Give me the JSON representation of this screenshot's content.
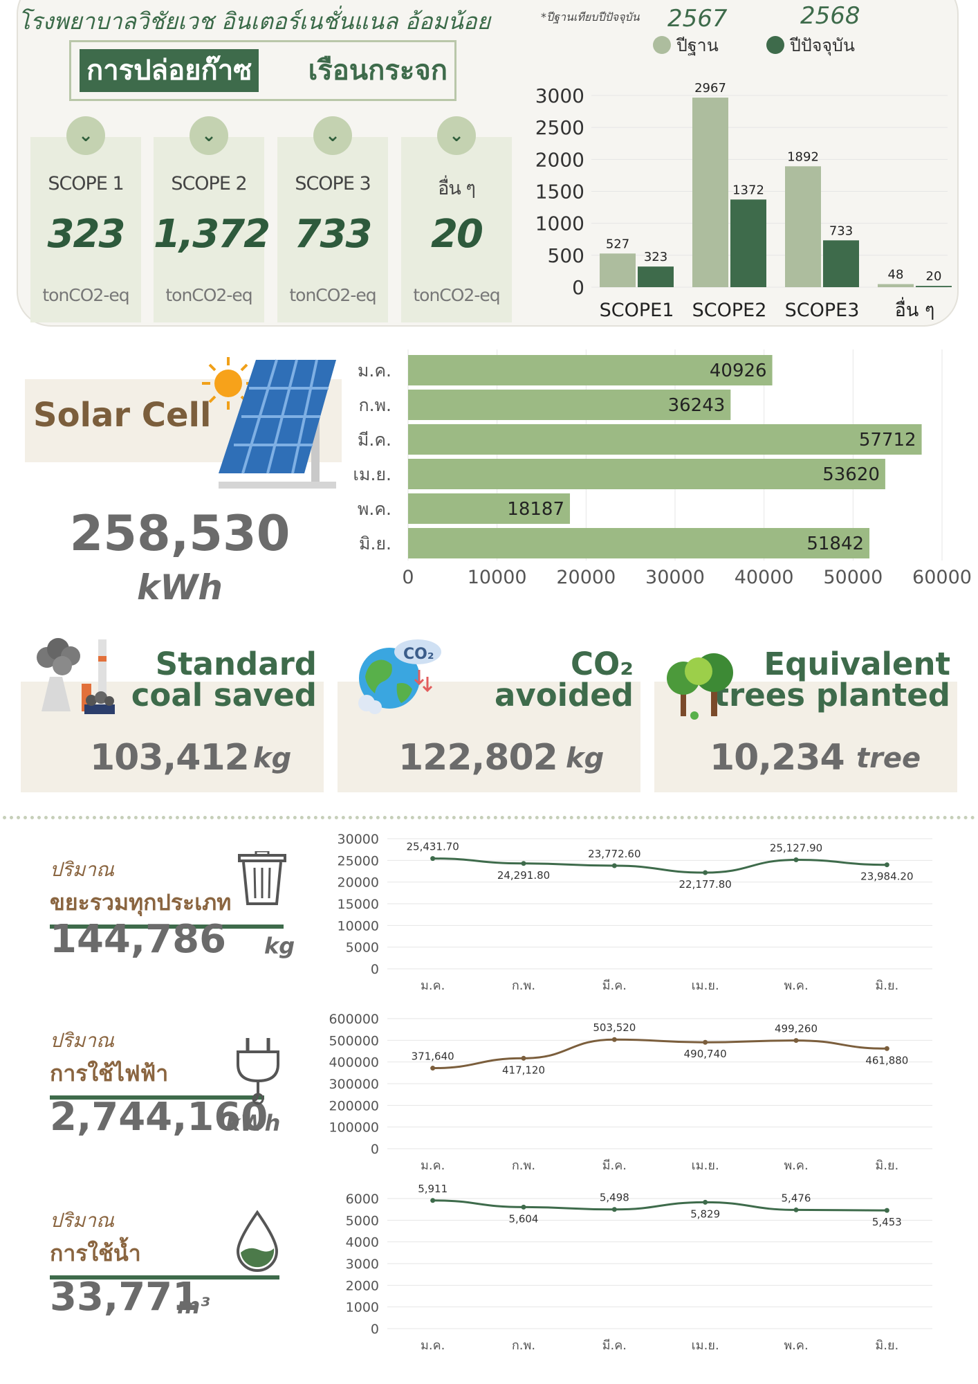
{
  "ghg": {
    "hospital_name": "โรงพยาบาลวิชัยเวช อินเตอร์เนชั่นแนล อ้อมน้อย",
    "title_dark": "การปล่อยก๊าซ",
    "title_light": "เรือนกระจก",
    "note": "*ปีฐานเทียบปีปัจจุบัน",
    "year_base": "2567",
    "year_current": "2568",
    "legend_base": "ปีฐาน",
    "legend_current": "ปีปัจจุบัน",
    "cards": [
      {
        "name": "SCOPE 1",
        "value": "323",
        "unit": "tonCO2-eq"
      },
      {
        "name": "SCOPE 2",
        "value": "1,372",
        "unit": "tonCO2-eq"
      },
      {
        "name": "SCOPE 3",
        "value": "733",
        "unit": "tonCO2-eq"
      },
      {
        "name": "อื่น ๆ",
        "value": "20",
        "unit": "tonCO2-eq"
      }
    ]
  },
  "solar": {
    "title": "Solar Cell",
    "value": "258,530",
    "unit": "kWh"
  },
  "equivalents": [
    {
      "title_line1": "Standard",
      "title_line2": "coal saved",
      "value": "103,412",
      "unit": "kg"
    },
    {
      "title_line1": "CO₂",
      "title_line2": "avoided",
      "value": "122,802",
      "unit": "kg"
    },
    {
      "title_line1": "Equivalent",
      "title_line2": "trees planted",
      "value": "10,234",
      "unit": "tree"
    }
  ],
  "utilities": [
    {
      "small": "ปริมาณ",
      "title": "ขยะรวมทุกประเภท",
      "value": "144,786",
      "unit": "kg"
    },
    {
      "small": "ปริมาณ",
      "title": "การใช้ไฟฟ้า",
      "value": "2,744,160",
      "unit": "kWh"
    },
    {
      "small": "ปริมาณ",
      "title": "การใช้น้ำ",
      "value": "33,771",
      "unit": "m³"
    }
  ],
  "colors": {
    "base_bar": "#adbd9e",
    "current_bar": "#3e6b4b",
    "solar_bar": "#9cba84",
    "brown": "#7b5e3c",
    "green_dark": "#3e6b4b"
  },
  "chart_data": [
    {
      "type": "bar",
      "categories": [
        "SCOPE1",
        "SCOPE2",
        "SCOPE3",
        "อื่น ๆ"
      ],
      "series": [
        {
          "name": "ปีฐาน",
          "values": [
            527,
            2967,
            1892,
            48
          ]
        },
        {
          "name": "ปีปัจจุบัน",
          "values": [
            323,
            1372,
            733,
            20
          ]
        }
      ],
      "yticks": [
        0,
        500,
        1000,
        1500,
        2000,
        2500,
        3000
      ],
      "ylim": [
        0,
        3000
      ],
      "grid": true
    },
    {
      "type": "bar",
      "orientation": "horizontal",
      "categories": [
        "ม.ค.",
        "ก.พ.",
        "มี.ค.",
        "เม.ย.",
        "พ.ค.",
        "มิ.ย."
      ],
      "values": [
        40926,
        36243,
        57712,
        53620,
        18187,
        51842
      ],
      "xticks": [
        0,
        10000,
        20000,
        30000,
        40000,
        50000,
        60000
      ],
      "xlim": [
        0,
        60000
      ],
      "grid": true
    },
    {
      "type": "line",
      "categories": [
        "ม.ค.",
        "ก.พ.",
        "มี.ค.",
        "เม.ย.",
        "พ.ค.",
        "มิ.ย."
      ],
      "values": [
        25431.7,
        24291.8,
        23772.6,
        22177.8,
        25127.9,
        23984.2
      ],
      "labels": [
        "25,431.70",
        "24,291.80",
        "23,772.60",
        "22,177.80",
        "25,127.90",
        "23,984.20"
      ],
      "yticks": [
        0,
        5000,
        10000,
        15000,
        20000,
        25000,
        30000
      ],
      "ylim": [
        0,
        30000
      ],
      "color": "#3e6b4b"
    },
    {
      "type": "line",
      "categories": [
        "ม.ค.",
        "ก.พ.",
        "มี.ค.",
        "เม.ย.",
        "พ.ค.",
        "มิ.ย."
      ],
      "values": [
        371640,
        417120,
        503520,
        490740,
        499260,
        461880
      ],
      "labels": [
        "371,640",
        "417,120",
        "503,520",
        "490,740",
        "499,260",
        "461,880"
      ],
      "yticks": [
        0,
        100000,
        200000,
        300000,
        400000,
        500000,
        600000
      ],
      "ylim": [
        0,
        600000
      ],
      "color": "#7b5e3c"
    },
    {
      "type": "line",
      "categories": [
        "ม.ค.",
        "ก.พ.",
        "มี.ค.",
        "เม.ย.",
        "พ.ค.",
        "มิ.ย."
      ],
      "values": [
        5911,
        5604,
        5498,
        5829,
        5476,
        5453
      ],
      "labels": [
        "5,911",
        "5,604",
        "5,498",
        "5,829",
        "5,476",
        "5,453"
      ],
      "yticks": [
        0,
        1000,
        2000,
        3000,
        4000,
        5000,
        6000
      ],
      "ylim": [
        0,
        6000
      ],
      "color": "#3e6b4b"
    }
  ]
}
